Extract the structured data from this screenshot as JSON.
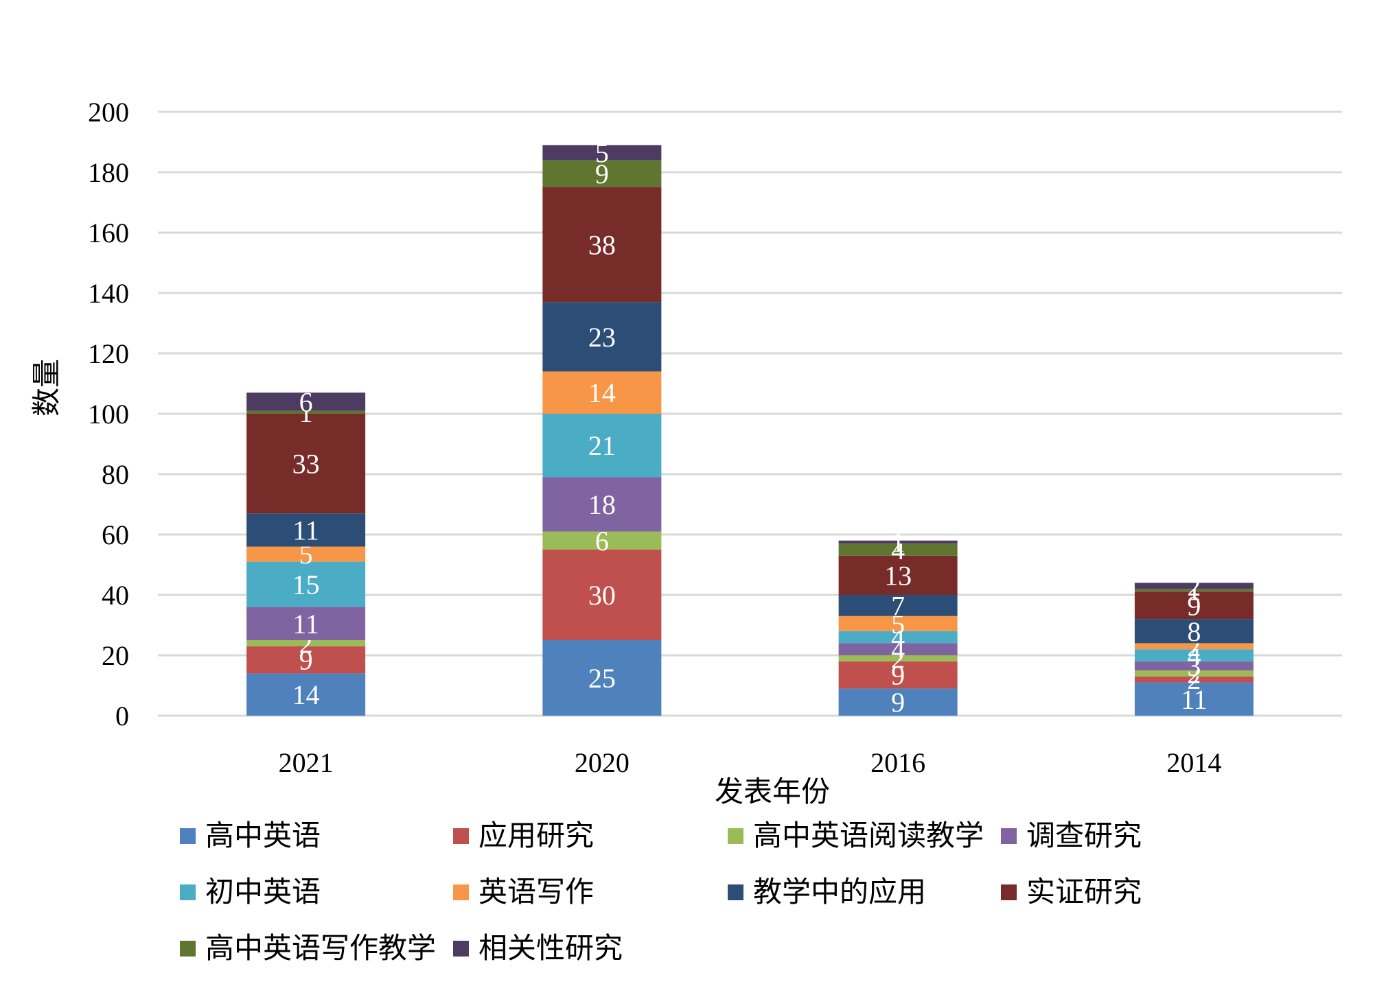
{
  "chart_data": {
    "type": "bar",
    "stacked": true,
    "title": "",
    "xlabel": "发表年份",
    "ylabel": "数量",
    "ylim": [
      0,
      200
    ],
    "yticks": [
      0,
      20,
      40,
      60,
      80,
      100,
      120,
      140,
      160,
      180,
      200
    ],
    "grid": true,
    "legend_position": "bottom",
    "categories": [
      "2021",
      "2020",
      "2016",
      "2014"
    ],
    "series": [
      {
        "name": "高中英语",
        "color": "#4F81BD",
        "values": [
          14,
          25,
          9,
          11
        ]
      },
      {
        "name": "应用研究",
        "color": "#C0504D",
        "values": [
          9,
          30,
          9,
          2
        ]
      },
      {
        "name": "高中英语阅读教学",
        "color": "#9BBB59",
        "values": [
          2,
          6,
          2,
          2
        ]
      },
      {
        "name": "调查研究",
        "color": "#8064A2",
        "values": [
          11,
          18,
          4,
          3
        ]
      },
      {
        "name": "初中英语",
        "color": "#4BACC6",
        "values": [
          15,
          21,
          4,
          4
        ]
      },
      {
        "name": "英语写作",
        "color": "#F79646",
        "values": [
          5,
          14,
          5,
          2
        ]
      },
      {
        "name": "教学中的应用",
        "color": "#2C4D75",
        "values": [
          11,
          23,
          7,
          8
        ]
      },
      {
        "name": "实证研究",
        "color": "#772C2A",
        "values": [
          33,
          38,
          13,
          9
        ]
      },
      {
        "name": "高中英语写作教学",
        "color": "#5F7530",
        "values": [
          1,
          9,
          4,
          1
        ]
      },
      {
        "name": "相关性研究",
        "color": "#4D3B62",
        "values": [
          6,
          5,
          1,
          2
        ]
      }
    ]
  }
}
